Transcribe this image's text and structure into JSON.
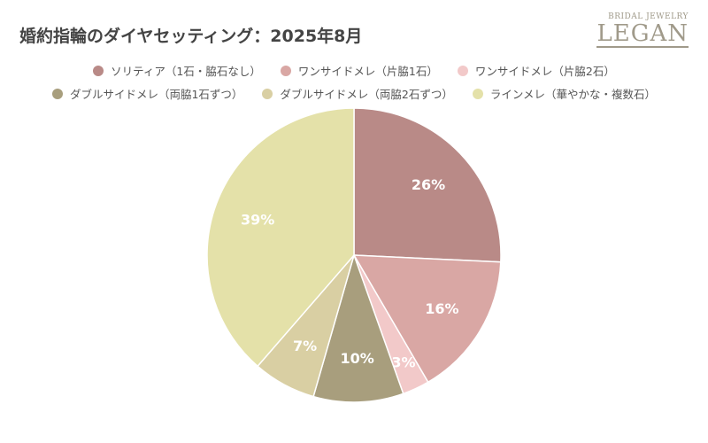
{
  "chart_data": {
    "type": "pie",
    "title": "婚約指輪のダイヤセッティング：2025年8月",
    "legend_position": "top",
    "slices": [
      {
        "label": "ソリティア（1石・脇石なし）",
        "value": 26,
        "display": "26%",
        "color": "#b98a87"
      },
      {
        "label": "ワンサイドメレ（片脇1石）",
        "value": 16,
        "display": "16%",
        "color": "#d9a7a4"
      },
      {
        "label": "ワンサイドメレ（片脇2石）",
        "value": 3,
        "display": "3%",
        "color": "#f2c9c9"
      },
      {
        "label": "ダブルサイドメレ（両脇1石ずつ）",
        "value": 10,
        "display": "10%",
        "color": "#a89e7d"
      },
      {
        "label": "ダブルサイドメレ（両脇2石ずつ）",
        "value": 7,
        "display": "7%",
        "color": "#d9cfa3"
      },
      {
        "label": "ラインメレ（華やかな・複数石）",
        "value": 39,
        "display": "39%",
        "color": "#e4e1a9"
      }
    ]
  },
  "logo": {
    "small": "BRIDAL JEWELRY",
    "big": "LEGAN"
  }
}
